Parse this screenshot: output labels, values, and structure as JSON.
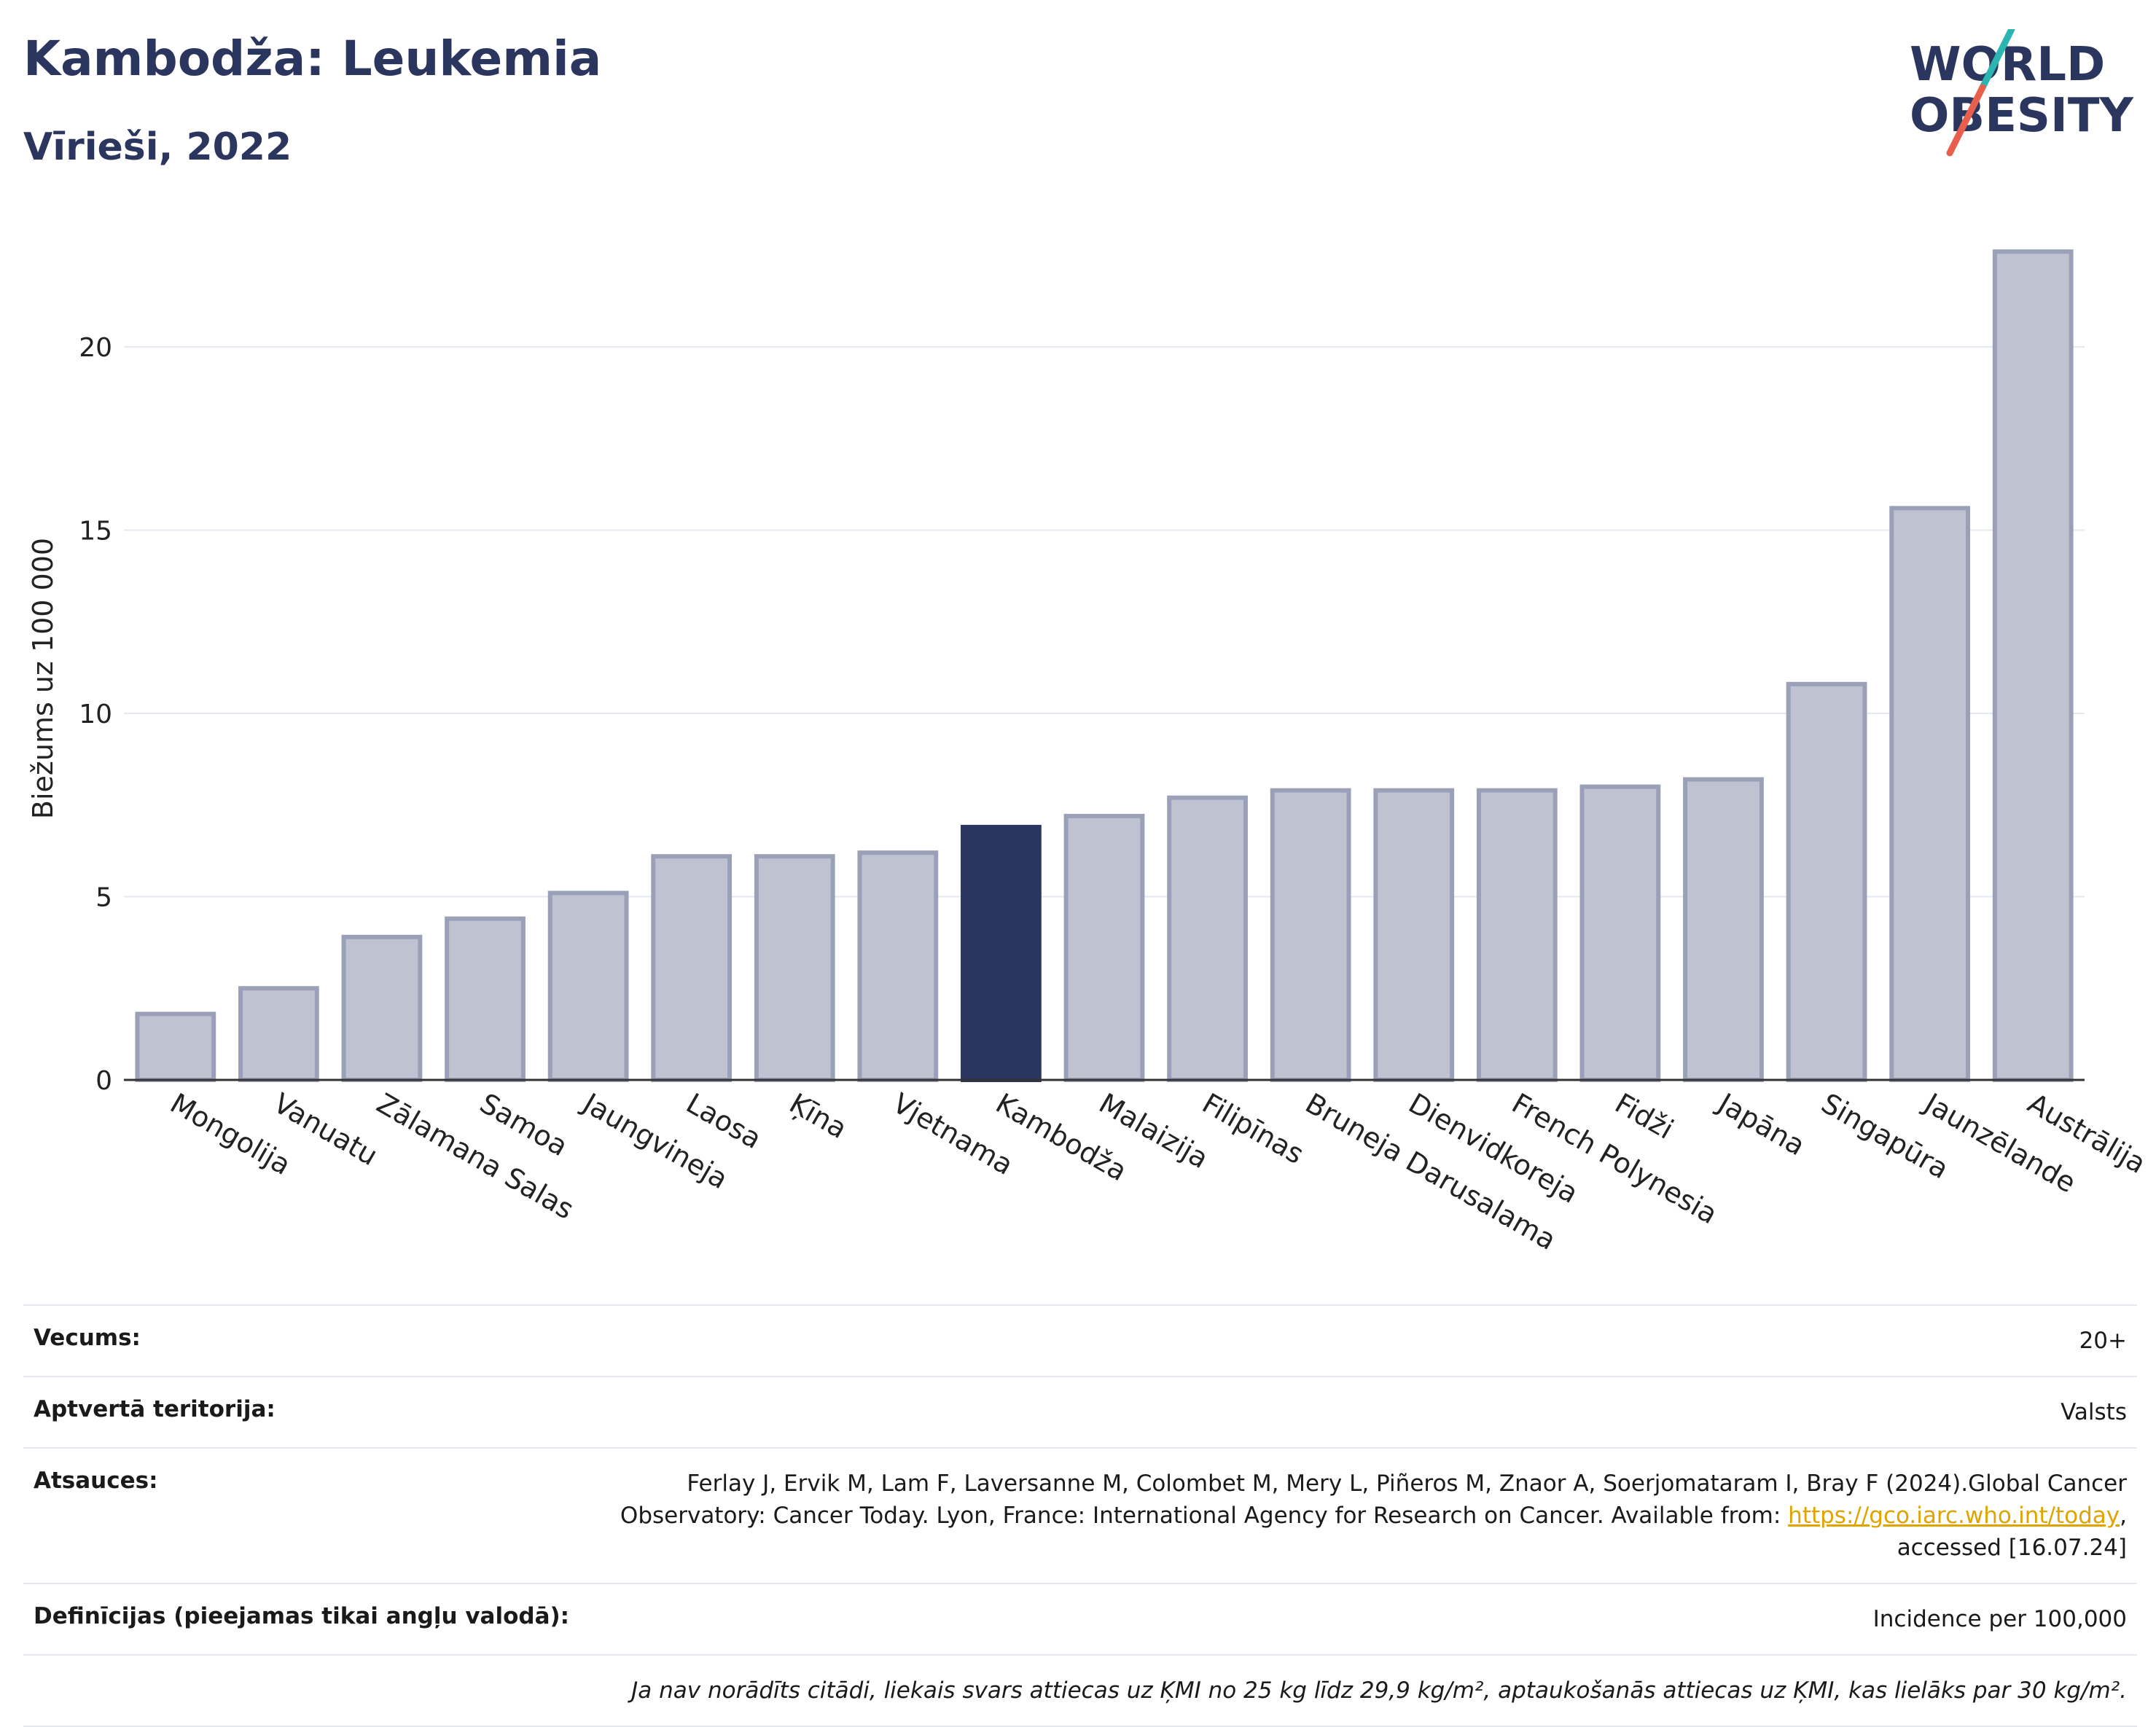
{
  "header": {
    "title": "Kambodža: Leukemia",
    "subtitle": "Vīrieši, 2022",
    "logo_line1": "WORLD",
    "logo_line2": "OBESITY"
  },
  "colors": {
    "bar": "#bfc3d1",
    "bar_border": "#9aa0b8",
    "highlight": "#2b365f",
    "grid": "#e6e8ef",
    "logo_teal": "#2bb5b0",
    "logo_red": "#e8604c"
  },
  "chart_data": {
    "type": "bar",
    "ylabel": "Biežums uz 100 000",
    "ylim": [
      0,
      23.5
    ],
    "yticks": [
      0,
      5,
      10,
      15,
      20
    ],
    "grid": true,
    "highlight": "Kambodža",
    "categories": [
      "Mongolija",
      "Vanuatu",
      "Zālamana Salas",
      "Samoa",
      "Jaungvineja",
      "Laosa",
      "Ķīna",
      "Vjetnama",
      "Kambodža",
      "Malaizija",
      "Filipīnas",
      "Bruneja Darusalama",
      "Dienvidkoreja",
      "French Polynesia",
      "Fidži",
      "Japāna",
      "Singapūra",
      "Jaunzēlande",
      "Austrālija"
    ],
    "values": [
      1.8,
      2.5,
      3.9,
      4.4,
      5.1,
      6.1,
      6.1,
      6.2,
      6.9,
      7.2,
      7.7,
      7.9,
      7.9,
      7.9,
      8.0,
      8.2,
      10.8,
      15.6,
      22.6
    ]
  },
  "info": {
    "age_label": "Vecums:",
    "age_value": "20+",
    "territory_label": "Aptvertā teritorija:",
    "territory_value": "Valsts",
    "refs_label": "Atsauces:",
    "refs_text": "Ferlay J, Ervik M, Lam F, Laversanne M, Colombet M, Mery L, Piñeros M, Znaor A, Soerjomataram I, Bray F (2024).Global Cancer Observatory: Cancer Today. Lyon, France: International Agency for Research on Cancer. Available from:",
    "refs_link": "https://gco.iarc.who.int/today",
    "refs_tail": ", accessed [16.07.24]",
    "defs_label": "Definīcijas (pieejamas tikai angļu valodā):",
    "defs_value": "Incidence per 100,000",
    "note": "Ja nav norādīts citādi, liekais svars attiecas uz ĶMI no 25 kg līdz 29,9 kg/m², aptaukošanās attiecas uz ĶMI, kas lielāks par 30 kg/m²."
  }
}
